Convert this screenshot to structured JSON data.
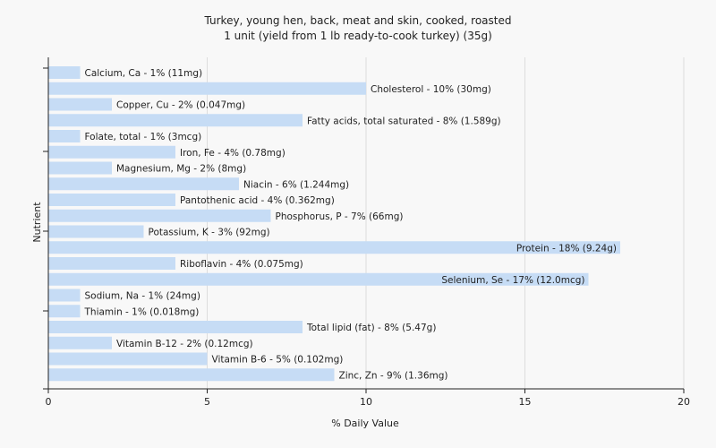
{
  "chart_data": {
    "type": "bar",
    "orientation": "horizontal",
    "title": "Turkey, young hen, back, meat and skin, cooked, roasted",
    "subtitle": "1 unit (yield from 1 lb ready-to-cook turkey) (35g)",
    "xlabel": "% Daily Value",
    "ylabel": "Nutrient",
    "xlim": [
      0,
      20
    ],
    "xticks": [
      "0",
      "5",
      "10",
      "15",
      "20"
    ],
    "grid": true,
    "bar_color": "#c6dcf5",
    "grid_color": "#dddddd",
    "categories": [
      "Calcium, Ca - 1% (11mg)",
      "Cholesterol - 10% (30mg)",
      "Copper, Cu - 2% (0.047mg)",
      "Fatty acids, total saturated - 8% (1.589g)",
      "Folate, total - 1% (3mcg)",
      "Iron, Fe - 4% (0.78mg)",
      "Magnesium, Mg - 2% (8mg)",
      "Niacin - 6% (1.244mg)",
      "Pantothenic acid - 4% (0.362mg)",
      "Phosphorus, P - 7% (66mg)",
      "Potassium, K - 3% (92mg)",
      "Protein - 18% (9.24g)",
      "Riboflavin - 4% (0.075mg)",
      "Selenium, Se - 17% (12.0mcg)",
      "Sodium, Na - 1% (24mg)",
      "Thiamin - 1% (0.018mg)",
      "Total lipid (fat) - 8% (5.47g)",
      "Vitamin B-12 - 2% (0.12mcg)",
      "Vitamin B-6 - 5% (0.102mg)",
      "Zinc, Zn - 9% (1.36mg)"
    ],
    "values": [
      1,
      10,
      2,
      8,
      1,
      4,
      2,
      6,
      4,
      7,
      3,
      18,
      4,
      17,
      1,
      1,
      8,
      2,
      5,
      9
    ]
  }
}
